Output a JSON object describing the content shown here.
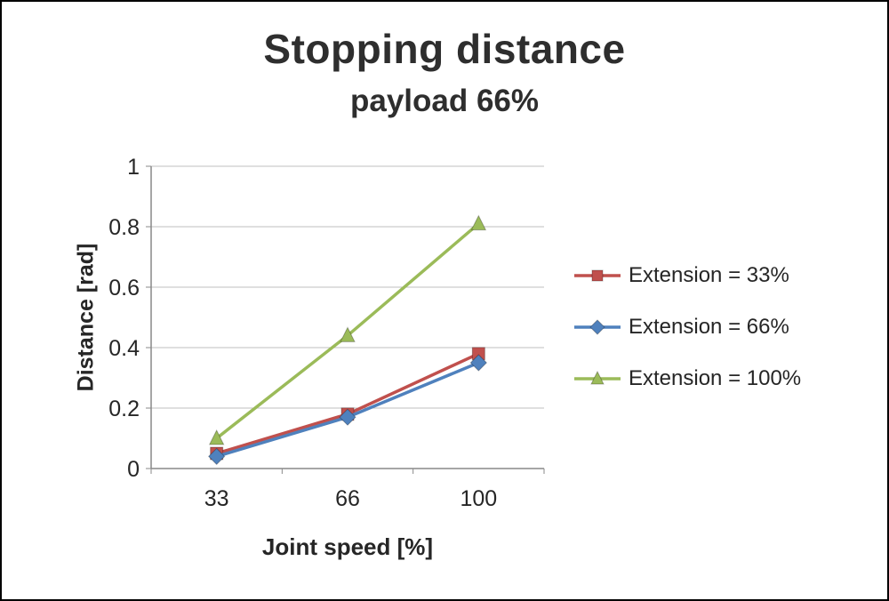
{
  "chart_data": {
    "type": "line",
    "title": "Stopping distance",
    "subtitle": "payload 66%",
    "xlabel": "Joint speed [%]",
    "ylabel": "Distance [rad]",
    "categories": [
      "33",
      "66",
      "100"
    ],
    "ylim": [
      0,
      1
    ],
    "ytick_interval": 0.2,
    "yticks": [
      "0",
      "0.2",
      "0.4",
      "0.6",
      "0.8",
      "1"
    ],
    "grid": "horizontal",
    "legend_position": "right",
    "colors": {
      "gridline": "#bfbfbf",
      "axis": "#898989",
      "text": "#262626"
    },
    "series": [
      {
        "name": "Extension = 33%",
        "color": "#C0504D",
        "marker": "square",
        "values": [
          0.05,
          0.18,
          0.38
        ]
      },
      {
        "name": "Extension = 66%",
        "color": "#4F81BD",
        "marker": "diamond",
        "values": [
          0.04,
          0.17,
          0.35
        ]
      },
      {
        "name": "Extension = 100%",
        "color": "#9BBB59",
        "marker": "triangle",
        "values": [
          0.1,
          0.44,
          0.81
        ]
      }
    ]
  }
}
